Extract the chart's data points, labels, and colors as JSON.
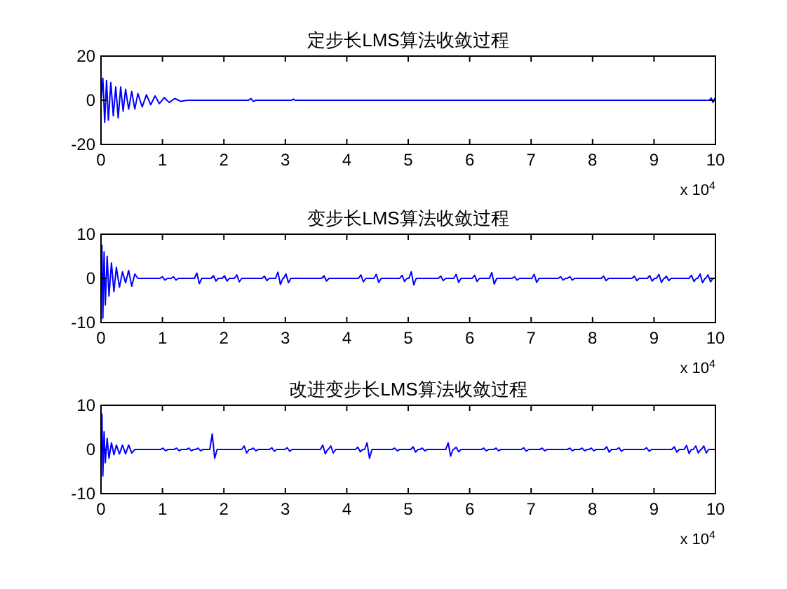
{
  "chart_data": [
    {
      "type": "line",
      "title": "定步长LMS算法收敛过程",
      "xlim": [
        0,
        10
      ],
      "ylim": [
        -20,
        20
      ],
      "yticks": [
        -20,
        0,
        20
      ],
      "xticks": [
        0,
        1,
        2,
        3,
        4,
        5,
        6,
        7,
        8,
        9,
        10
      ],
      "annotations": [
        "x 10$^{4}$"
      ],
      "series": [
        {
          "color": "#0000ff",
          "x": [
            0,
            0.03,
            0.06,
            0.09,
            0.12,
            0.16,
            0.2,
            0.24,
            0.28,
            0.32,
            0.36,
            0.4,
            0.45,
            0.5,
            0.55,
            0.6,
            0.67,
            0.74,
            0.81,
            0.88,
            0.95,
            1.03,
            1.11,
            1.2,
            1.3,
            1.4,
            2.4,
            2.44,
            2.48,
            2.52,
            3.1,
            3.13,
            3.16,
            9.9,
            9.93,
            9.96,
            9.99,
            10
          ],
          "values": [
            0,
            10,
            -10,
            9,
            -9,
            8,
            -7,
            6,
            -8,
            6,
            -5,
            5,
            -4,
            4,
            -4,
            3,
            -3,
            2.5,
            -2,
            2,
            -1.5,
            1.2,
            -1,
            0.8,
            -0.5,
            0,
            0,
            0.8,
            -0.5,
            0,
            0,
            0.5,
            0,
            0,
            1,
            -1,
            0.8,
            0
          ]
        }
      ]
    },
    {
      "type": "line",
      "title": "变步长LMS算法收敛过程",
      "xlim": [
        0,
        10
      ],
      "ylim": [
        -10,
        10
      ],
      "yticks": [
        -10,
        0,
        10
      ],
      "xticks": [
        0,
        1,
        2,
        3,
        4,
        5,
        6,
        7,
        8,
        9,
        10
      ],
      "annotations": [
        "x 10$^{4}$"
      ],
      "series": [
        {
          "color": "#0000ff",
          "x": [
            0,
            0.015,
            0.03,
            0.05,
            0.07,
            0.1,
            0.13,
            0.17,
            0.21,
            0.25,
            0.3,
            0.35,
            0.4,
            0.45,
            0.5,
            0.55,
            0.6,
            0.96,
            1.0,
            1.04,
            1.08,
            1.14,
            1.18,
            1.22,
            1.26,
            1.52,
            1.56,
            1.6,
            1.64,
            1.79,
            1.83,
            1.87,
            1.91,
            1.97,
            2.01,
            2.05,
            2.09,
            2.17,
            2.21,
            2.25,
            2.29,
            2.62,
            2.66,
            2.7,
            2.74,
            2.84,
            2.88,
            2.92,
            2.96,
            2.97,
            3.01,
            3.05,
            3.09,
            3.59,
            3.63,
            3.67,
            3.71,
            4.19,
            4.23,
            4.27,
            4.31,
            4.44,
            4.48,
            4.52,
            4.56,
            4.86,
            4.9,
            4.94,
            4.98,
            5.01,
            5.05,
            5.09,
            5.13,
            5.49,
            5.53,
            5.57,
            5.61,
            5.74,
            5.78,
            5.82,
            5.86,
            6.04,
            6.08,
            6.12,
            6.16,
            6.32,
            6.36,
            6.4,
            6.44,
            6.69,
            6.73,
            6.77,
            6.81,
            7.01,
            7.05,
            7.09,
            7.13,
            7.44,
            7.48,
            7.52,
            7.56,
            7.59,
            7.63,
            7.67,
            7.71,
            8.14,
            8.18,
            8.22,
            8.26,
            8.64,
            8.68,
            8.72,
            8.76,
            8.89,
            8.93,
            8.97,
            9.01,
            9.04,
            9.08,
            9.12,
            9.16,
            9.17,
            9.2,
            9.24,
            9.28,
            9.57,
            9.61,
            9.65,
            9.69,
            9.71,
            9.75,
            9.79,
            9.83,
            9.84,
            9.88,
            9.92,
            9.96,
            10
          ],
          "values": [
            0,
            7.5,
            -9,
            6,
            -6,
            5,
            -4,
            3.5,
            -3,
            2.5,
            -2,
            1.5,
            -1,
            1.8,
            -1.8,
            1,
            0,
            0,
            0.4,
            -0.4,
            0,
            0,
            0.4,
            -0.4,
            0,
            0,
            1.2,
            -1.2,
            0,
            0,
            0.6,
            -0.6,
            0,
            0,
            0.6,
            -0.6,
            0,
            0,
            0.8,
            -0.8,
            0,
            0,
            0.5,
            -0.5,
            0,
            0,
            1.4,
            -1.4,
            0,
            0,
            1,
            -1,
            0,
            0,
            0.6,
            -0.6,
            0,
            0,
            0.8,
            -0.8,
            0,
            0,
            0.9,
            -0.9,
            0,
            0,
            0.7,
            -0.7,
            0,
            0,
            1.5,
            -1.5,
            0,
            0,
            0.5,
            -0.5,
            0,
            0,
            0.9,
            -0.9,
            0,
            0,
            0.7,
            -0.7,
            0,
            0,
            1.3,
            -1.3,
            0,
            0,
            0.4,
            -0.4,
            0,
            0,
            0.9,
            -0.9,
            0,
            0,
            0.4,
            -0.4,
            0,
            0,
            0.4,
            -0.4,
            0,
            0,
            0.5,
            -0.5,
            0,
            0,
            0.5,
            -0.5,
            0,
            0,
            0.6,
            -0.6,
            0,
            0,
            0.9,
            -0.9,
            0,
            0,
            0.5,
            -0.5,
            0,
            0,
            0.7,
            -0.7,
            0,
            0,
            1,
            -1,
            0,
            0,
            0.8,
            -0.8,
            0,
            0
          ]
        }
      ]
    },
    {
      "type": "line",
      "title": "改进变步长LMS算法收敛过程",
      "xlim": [
        0,
        10
      ],
      "ylim": [
        -10,
        10
      ],
      "yticks": [
        -10,
        0,
        10
      ],
      "xticks": [
        0,
        1,
        2,
        3,
        4,
        5,
        6,
        7,
        8,
        9,
        10
      ],
      "annotations": [
        "x 10$^{4}$"
      ],
      "series": [
        {
          "color": "#0000ff",
          "x": [
            0,
            0.015,
            0.03,
            0.05,
            0.07,
            0.1,
            0.13,
            0.17,
            0.21,
            0.25,
            0.3,
            0.35,
            0.4,
            0.45,
            0.5,
            0.55,
            0.97,
            1.01,
            1.05,
            1.09,
            1.19,
            1.23,
            1.27,
            1.31,
            1.39,
            1.43,
            1.47,
            1.51,
            1.54,
            1.58,
            1.62,
            1.66,
            1.77,
            1.81,
            1.85,
            1.89,
            2.29,
            2.33,
            2.37,
            2.41,
            2.44,
            2.48,
            2.52,
            2.56,
            2.74,
            2.78,
            2.82,
            2.86,
            2.99,
            3.03,
            3.07,
            3.11,
            3.57,
            3.61,
            3.65,
            3.69,
            3.7,
            3.74,
            3.78,
            3.82,
            4.14,
            4.18,
            4.22,
            4.26,
            4.29,
            4.33,
            4.37,
            4.41,
            4.74,
            4.78,
            4.82,
            4.86,
            5.04,
            5.08,
            5.12,
            5.16,
            5.19,
            5.23,
            5.27,
            5.31,
            5.61,
            5.65,
            5.69,
            5.73,
            5.74,
            5.78,
            5.82,
            5.86,
            6.19,
            6.23,
            6.27,
            6.31,
            6.39,
            6.43,
            6.47,
            6.51,
            6.84,
            6.88,
            6.92,
            6.96,
            7.14,
            7.18,
            7.22,
            7.26,
            7.59,
            7.63,
            7.67,
            7.71,
            7.79,
            7.83,
            7.87,
            7.91,
            7.94,
            7.98,
            8.02,
            8.06,
            8.19,
            8.23,
            8.27,
            8.31,
            8.39,
            8.43,
            8.47,
            8.51,
            8.84,
            8.88,
            8.92,
            8.96,
            9.29,
            9.33,
            9.37,
            9.41,
            9.49,
            9.53,
            9.57,
            9.61,
            9.64,
            9.68,
            9.72,
            9.76,
            9.77,
            9.81,
            9.85,
            9.89,
            10
          ],
          "values": [
            0,
            8,
            -6,
            4,
            -3,
            2.5,
            -2,
            1.5,
            -1.2,
            1,
            -1,
            1,
            -1,
            1,
            -0.8,
            0,
            0,
            0.3,
            -0.3,
            0,
            0,
            0.3,
            -0.3,
            0,
            0,
            0.3,
            -0.3,
            0,
            0,
            0.3,
            -0.3,
            0,
            0,
            3.5,
            -2,
            0,
            0,
            0.8,
            -0.8,
            0,
            0,
            0.3,
            -0.3,
            0,
            0,
            0.4,
            -0.4,
            0,
            0,
            0.4,
            -0.4,
            0,
            0,
            1,
            -1,
            0,
            0,
            0.8,
            -0.8,
            0,
            0,
            0.5,
            -0.5,
            0,
            0,
            1.5,
            -2,
            0,
            0,
            0.3,
            -0.3,
            0,
            0,
            0.6,
            -0.6,
            0,
            0,
            0.3,
            -0.3,
            0,
            0,
            1.5,
            -1.5,
            0,
            0,
            0.5,
            -0.5,
            0,
            0,
            0.3,
            -0.3,
            0,
            0,
            0.3,
            -0.3,
            0,
            0,
            0.4,
            -0.4,
            0,
            0,
            0.3,
            -0.3,
            0,
            0,
            0.3,
            -0.3,
            0,
            0,
            0.3,
            -0.3,
            0,
            0,
            0.3,
            -0.3,
            0,
            0,
            0.6,
            -0.6,
            0,
            0,
            0.4,
            -0.4,
            0,
            0,
            0.4,
            -0.4,
            0,
            0,
            0.6,
            -0.6,
            0,
            0,
            0.9,
            -0.9,
            0,
            0,
            0.8,
            -0.8,
            0,
            0,
            0.8,
            -0.8,
            0,
            0
          ]
        }
      ]
    }
  ]
}
